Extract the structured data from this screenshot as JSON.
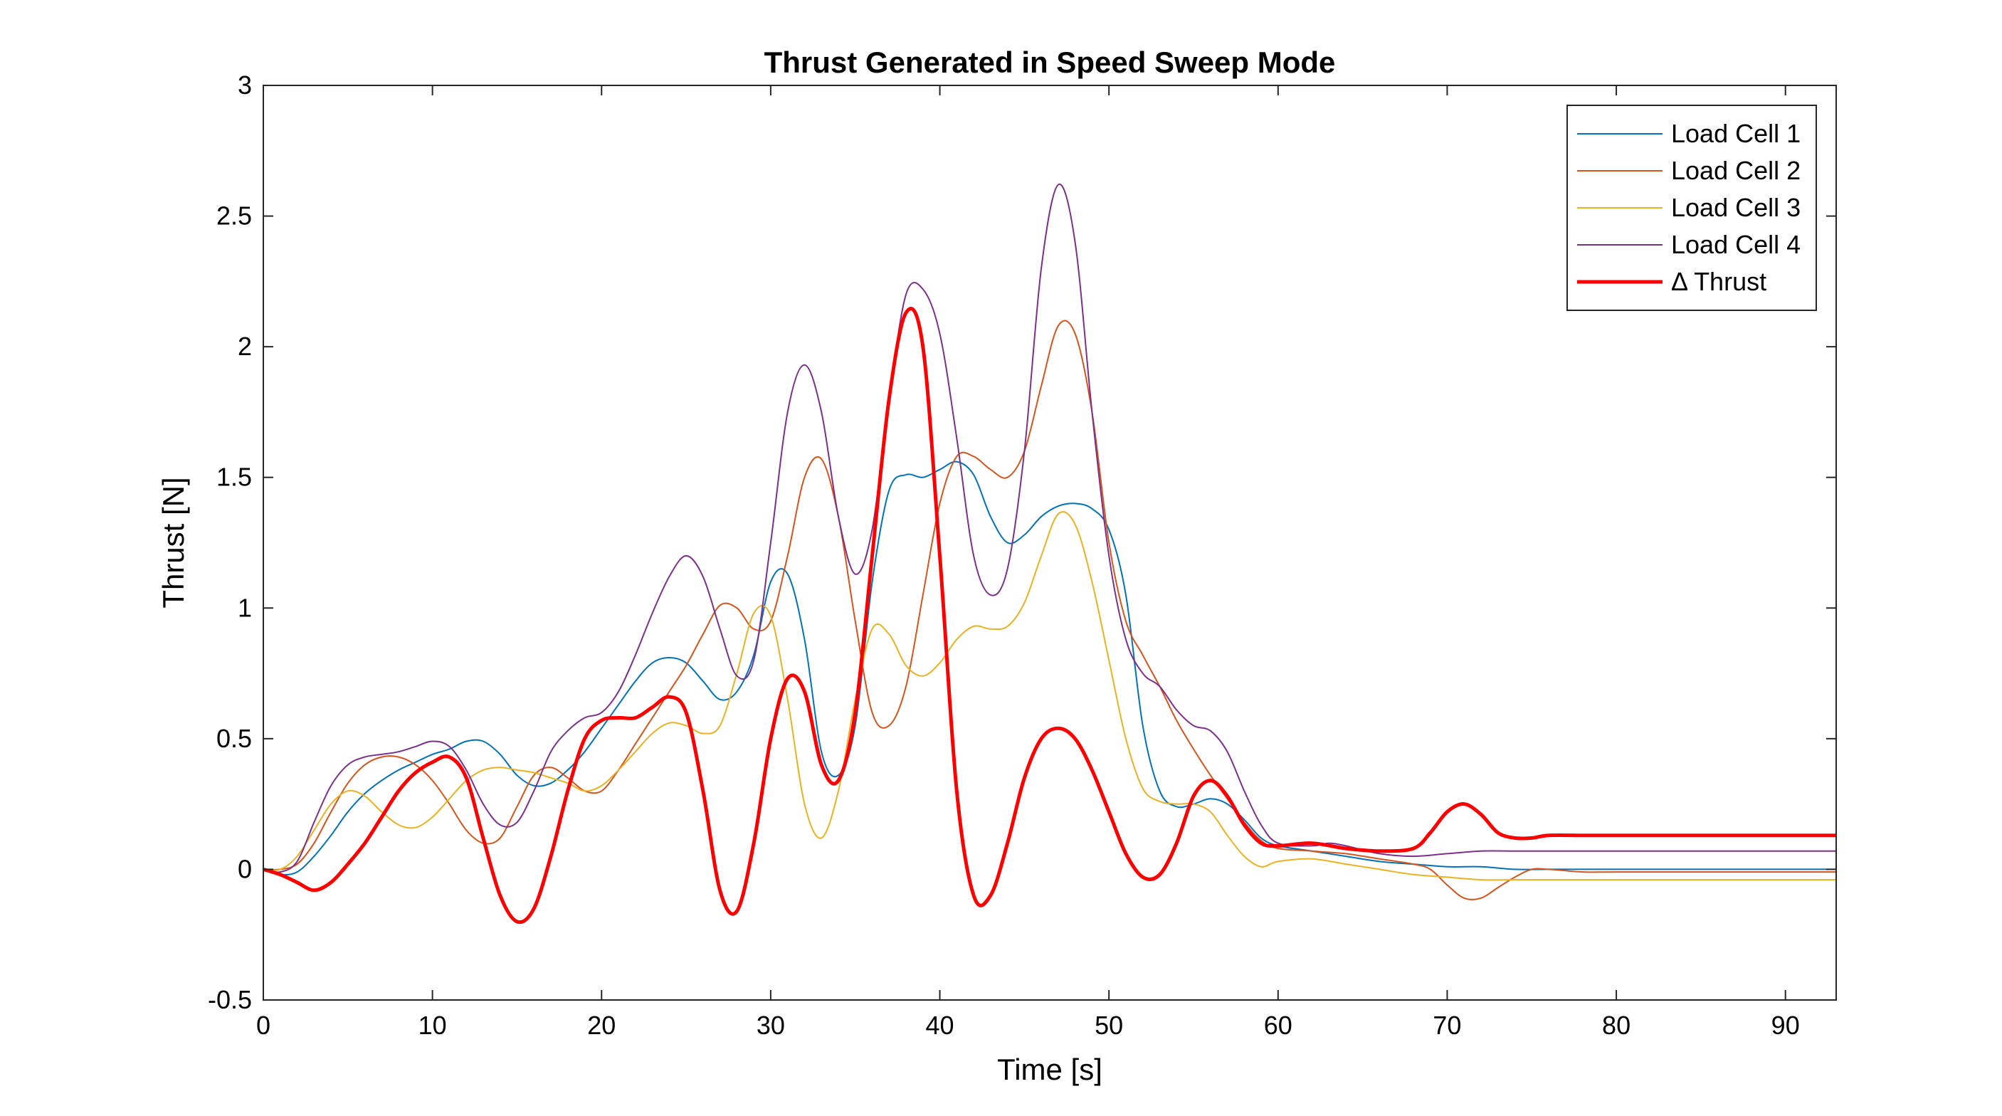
{
  "chart_data": {
    "type": "line",
    "title": "Thrust Generated in Speed Sweep Mode",
    "xlabel": "Time [s]",
    "ylabel": "Thrust [N]",
    "xlim": [
      0,
      93
    ],
    "ylim": [
      -0.5,
      3
    ],
    "xticks": [
      0,
      10,
      20,
      30,
      40,
      50,
      60,
      70,
      80,
      90
    ],
    "yticks": [
      -0.5,
      0,
      0.5,
      1,
      1.5,
      2,
      2.5,
      3
    ],
    "grid": false,
    "legend_position": "top-right",
    "series": [
      {
        "name": "Load Cell 1",
        "color": "#0072BD",
        "line_width": "thin",
        "x": [
          0,
          1,
          2,
          3,
          4,
          5,
          6,
          7,
          8,
          9,
          10,
          11,
          12,
          13,
          14,
          15,
          16,
          17,
          18,
          19,
          20,
          21,
          22,
          23,
          24,
          25,
          26,
          27,
          28,
          29,
          30,
          31,
          32,
          33,
          34,
          35,
          36,
          37,
          38,
          39,
          40,
          41,
          42,
          43,
          44,
          45,
          46,
          47,
          48,
          49,
          50,
          51,
          52,
          53,
          54,
          55,
          56,
          57,
          58,
          59,
          60,
          62,
          64,
          66,
          68,
          70,
          72,
          74,
          76,
          78,
          80,
          85,
          90,
          93
        ],
        "y": [
          0,
          -0.02,
          -0.01,
          0.05,
          0.13,
          0.22,
          0.29,
          0.34,
          0.38,
          0.41,
          0.44,
          0.46,
          0.49,
          0.49,
          0.44,
          0.36,
          0.32,
          0.33,
          0.38,
          0.45,
          0.54,
          0.63,
          0.72,
          0.79,
          0.81,
          0.79,
          0.72,
          0.65,
          0.68,
          0.82,
          1.1,
          1.13,
          0.88,
          0.45,
          0.36,
          0.55,
          1.1,
          1.45,
          1.51,
          1.5,
          1.53,
          1.56,
          1.51,
          1.35,
          1.25,
          1.28,
          1.35,
          1.39,
          1.4,
          1.38,
          1.3,
          1.05,
          0.55,
          0.3,
          0.24,
          0.25,
          0.27,
          0.25,
          0.19,
          0.12,
          0.09,
          0.07,
          0.05,
          0.03,
          0.02,
          0.01,
          0.01,
          0.0,
          0.0,
          0.0,
          0.0,
          0.0,
          0.0,
          0.0
        ]
      },
      {
        "name": "Load Cell 2",
        "color": "#D95319",
        "line_width": "thin",
        "x": [
          0,
          1,
          2,
          3,
          4,
          5,
          6,
          7,
          8,
          9,
          10,
          11,
          12,
          13,
          14,
          15,
          16,
          17,
          18,
          19,
          20,
          21,
          22,
          23,
          24,
          25,
          26,
          27,
          28,
          29,
          30,
          31,
          32,
          33,
          34,
          35,
          36,
          37,
          38,
          39,
          40,
          41,
          42,
          43,
          44,
          45,
          46,
          47,
          48,
          49,
          50,
          51,
          52,
          53,
          54,
          55,
          56,
          57,
          58,
          59,
          60,
          62,
          64,
          66,
          68,
          69,
          70,
          71,
          72,
          73,
          74,
          75,
          76,
          78,
          80,
          85,
          90,
          93
        ],
        "y": [
          0,
          0,
          0.02,
          0.1,
          0.22,
          0.33,
          0.4,
          0.43,
          0.43,
          0.4,
          0.34,
          0.25,
          0.15,
          0.1,
          0.12,
          0.24,
          0.36,
          0.39,
          0.35,
          0.3,
          0.3,
          0.38,
          0.48,
          0.58,
          0.68,
          0.78,
          0.9,
          1.01,
          1.0,
          0.92,
          0.95,
          1.2,
          1.5,
          1.57,
          1.35,
          0.95,
          0.6,
          0.55,
          0.7,
          1.05,
          1.4,
          1.58,
          1.58,
          1.53,
          1.5,
          1.6,
          1.85,
          2.08,
          2.05,
          1.75,
          1.25,
          0.95,
          0.82,
          0.7,
          0.57,
          0.46,
          0.36,
          0.27,
          0.18,
          0.11,
          0.08,
          0.07,
          0.06,
          0.04,
          0.02,
          0.0,
          -0.06,
          -0.11,
          -0.11,
          -0.07,
          -0.03,
          0.0,
          0.0,
          -0.01,
          -0.01,
          -0.01,
          -0.01,
          -0.01
        ]
      },
      {
        "name": "Load Cell 3",
        "color": "#EDB120",
        "line_width": "thin",
        "x": [
          0,
          1,
          2,
          3,
          4,
          5,
          6,
          7,
          8,
          9,
          10,
          11,
          12,
          13,
          14,
          15,
          16,
          17,
          18,
          19,
          20,
          21,
          22,
          23,
          24,
          25,
          26,
          27,
          28,
          29,
          30,
          31,
          32,
          33,
          34,
          35,
          36,
          37,
          38,
          39,
          40,
          41,
          42,
          43,
          44,
          45,
          46,
          47,
          48,
          49,
          50,
          51,
          52,
          53,
          54,
          55,
          56,
          57,
          58,
          59,
          60,
          62,
          64,
          66,
          68,
          70,
          72,
          74,
          76,
          78,
          80,
          85,
          90,
          93
        ],
        "y": [
          0,
          0,
          0.05,
          0.15,
          0.25,
          0.3,
          0.28,
          0.22,
          0.17,
          0.16,
          0.2,
          0.27,
          0.34,
          0.38,
          0.39,
          0.38,
          0.37,
          0.35,
          0.33,
          0.3,
          0.32,
          0.38,
          0.45,
          0.52,
          0.56,
          0.55,
          0.52,
          0.55,
          0.75,
          0.98,
          0.97,
          0.65,
          0.25,
          0.12,
          0.3,
          0.65,
          0.92,
          0.9,
          0.78,
          0.74,
          0.79,
          0.88,
          0.93,
          0.92,
          0.93,
          1.02,
          1.2,
          1.36,
          1.32,
          1.1,
          0.8,
          0.5,
          0.31,
          0.26,
          0.25,
          0.25,
          0.22,
          0.13,
          0.05,
          0.01,
          0.03,
          0.04,
          0.02,
          0.0,
          -0.02,
          -0.03,
          -0.04,
          -0.04,
          -0.04,
          -0.04,
          -0.04,
          -0.04,
          -0.04,
          -0.04
        ]
      },
      {
        "name": "Load Cell 4",
        "color": "#7E2F8E",
        "line_width": "thin",
        "x": [
          0,
          1,
          2,
          3,
          4,
          5,
          6,
          7,
          8,
          9,
          10,
          11,
          12,
          13,
          14,
          15,
          16,
          17,
          18,
          19,
          20,
          21,
          22,
          23,
          24,
          25,
          26,
          27,
          28,
          29,
          30,
          31,
          32,
          33,
          34,
          35,
          36,
          37,
          38,
          39,
          40,
          41,
          42,
          43,
          44,
          45,
          46,
          47,
          48,
          49,
          50,
          51,
          52,
          53,
          54,
          55,
          56,
          57,
          58,
          59,
          60,
          62,
          63,
          64,
          66,
          68,
          70,
          72,
          74,
          76,
          78,
          80,
          85,
          90,
          93
        ],
        "y": [
          0,
          -0.01,
          0.03,
          0.18,
          0.32,
          0.4,
          0.43,
          0.44,
          0.45,
          0.47,
          0.49,
          0.47,
          0.38,
          0.25,
          0.17,
          0.18,
          0.3,
          0.45,
          0.53,
          0.58,
          0.6,
          0.68,
          0.82,
          0.98,
          1.12,
          1.2,
          1.12,
          0.92,
          0.74,
          0.8,
          1.25,
          1.75,
          1.93,
          1.75,
          1.35,
          1.13,
          1.3,
          1.8,
          2.2,
          2.22,
          2.05,
          1.65,
          1.2,
          1.05,
          1.15,
          1.6,
          2.3,
          2.62,
          2.4,
          1.75,
          1.2,
          0.88,
          0.75,
          0.7,
          0.61,
          0.55,
          0.53,
          0.45,
          0.3,
          0.17,
          0.1,
          0.09,
          0.1,
          0.09,
          0.06,
          0.05,
          0.06,
          0.07,
          0.07,
          0.07,
          0.07,
          0.07,
          0.07,
          0.07,
          0.07
        ]
      },
      {
        "name": "Δ Thrust",
        "color": "#FF0000",
        "line_width": "thick",
        "x": [
          0,
          1,
          2,
          3,
          4,
          5,
          6,
          7,
          8,
          9,
          10,
          11,
          12,
          13,
          14,
          15,
          16,
          17,
          18,
          19,
          20,
          21,
          22,
          23,
          24,
          25,
          26,
          27,
          28,
          29,
          30,
          31,
          32,
          33,
          34,
          35,
          36,
          37,
          38,
          39,
          40,
          41,
          42,
          43,
          44,
          45,
          46,
          47,
          48,
          49,
          50,
          51,
          52,
          53,
          54,
          55,
          56,
          57,
          58,
          59,
          60,
          62,
          64,
          66,
          68,
          69,
          70,
          71,
          72,
          73,
          74,
          75,
          76,
          78,
          80,
          85,
          90,
          93
        ],
        "y": [
          0,
          -0.02,
          -0.05,
          -0.08,
          -0.05,
          0.02,
          0.1,
          0.2,
          0.3,
          0.37,
          0.41,
          0.43,
          0.35,
          0.12,
          -0.1,
          -0.2,
          -0.15,
          0.05,
          0.3,
          0.5,
          0.57,
          0.58,
          0.58,
          0.62,
          0.66,
          0.6,
          0.3,
          -0.08,
          -0.16,
          0.1,
          0.5,
          0.73,
          0.68,
          0.4,
          0.34,
          0.6,
          1.2,
          1.8,
          2.13,
          2.0,
          1.2,
          0.3,
          -0.1,
          -0.1,
          0.1,
          0.35,
          0.5,
          0.54,
          0.5,
          0.38,
          0.22,
          0.06,
          -0.03,
          -0.02,
          0.1,
          0.28,
          0.34,
          0.28,
          0.17,
          0.1,
          0.09,
          0.1,
          0.08,
          0.07,
          0.08,
          0.14,
          0.22,
          0.25,
          0.21,
          0.14,
          0.12,
          0.12,
          0.13,
          0.13,
          0.13,
          0.13,
          0.13,
          0.13
        ]
      }
    ]
  }
}
